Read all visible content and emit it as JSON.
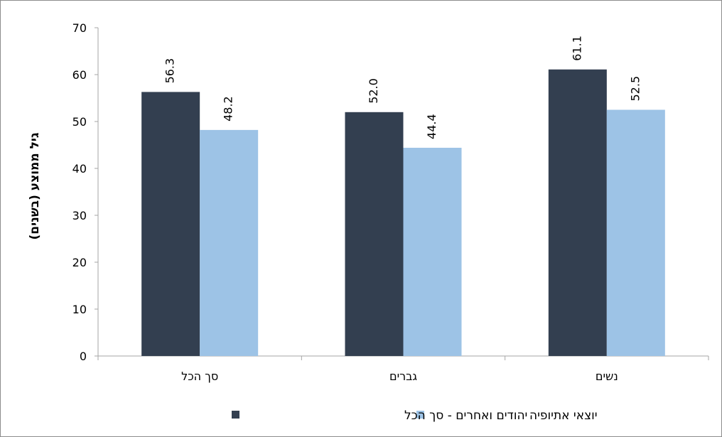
{
  "chart_data": {
    "type": "bar",
    "categories": [
      "סך הכל",
      "גברים",
      "נשים"
    ],
    "series": [
      {
        "name": "יהודים ואחרים - סך הכל",
        "values": [
          56.3,
          52.0,
          61.1
        ],
        "labels": [
          "56.3",
          "52.0",
          "61.1"
        ],
        "color": "#333f50"
      },
      {
        "name": "יוצאי אתיופיה",
        "values": [
          48.2,
          44.4,
          52.5
        ],
        "labels": [
          "48.2",
          "44.4",
          "52.5"
        ],
        "color": "#9dc3e6"
      }
    ],
    "yticks": [
      "0",
      "10",
      "20",
      "30",
      "40",
      "50",
      "60",
      "70"
    ],
    "ylim": [
      0,
      70
    ],
    "title": "",
    "xlabel": "",
    "ylabel": "גיל ממוצע (בשנים)",
    "grid": false,
    "legend_position": "bottom"
  }
}
